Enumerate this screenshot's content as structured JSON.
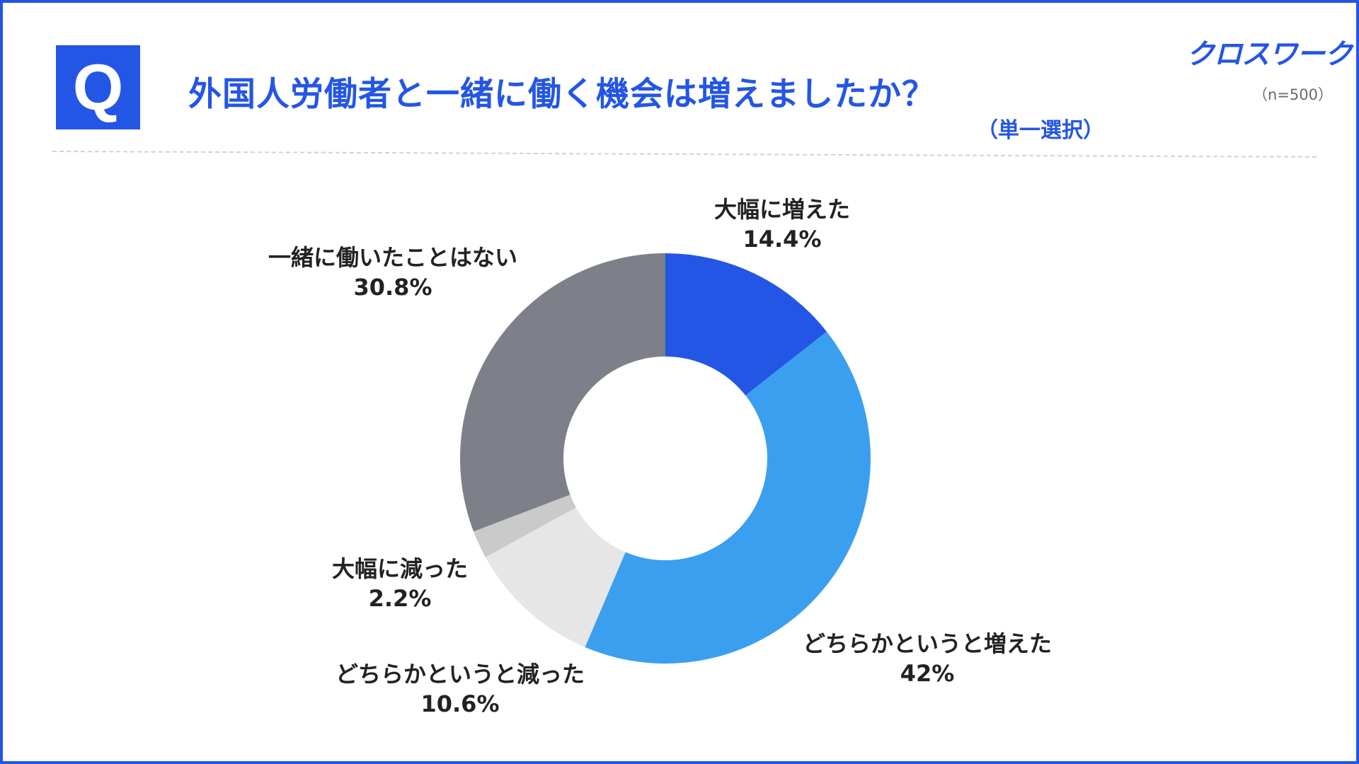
{
  "header": {
    "q_mark": "Q",
    "title": "外国人労働者と一緒に働く機会は増えましたか？",
    "subtitle": "（単一選択）",
    "logo": "クロスワーク",
    "sample_size": "（n=500）"
  },
  "chart_data": {
    "type": "pie",
    "donut": true,
    "unit": "%",
    "categories": [
      "大幅に増えた",
      "どちらかというと増えた",
      "どちらかというと減った",
      "大幅に減った",
      "一緒に働いたことはない"
    ],
    "values": [
      14.4,
      42,
      10.6,
      2.2,
      30.8
    ],
    "value_labels": [
      "14.4%",
      "42%",
      "10.6%",
      "2.2%",
      "30.8%"
    ],
    "colors": [
      "#2456e5",
      "#3b9ff0",
      "#e6e6e6",
      "#cacaca",
      "#7d8089"
    ],
    "start_angle": "12 o'clock",
    "direction": "clockwise",
    "legend": "none"
  },
  "colors": {
    "accent": "#2456e5",
    "text": "#222222"
  }
}
